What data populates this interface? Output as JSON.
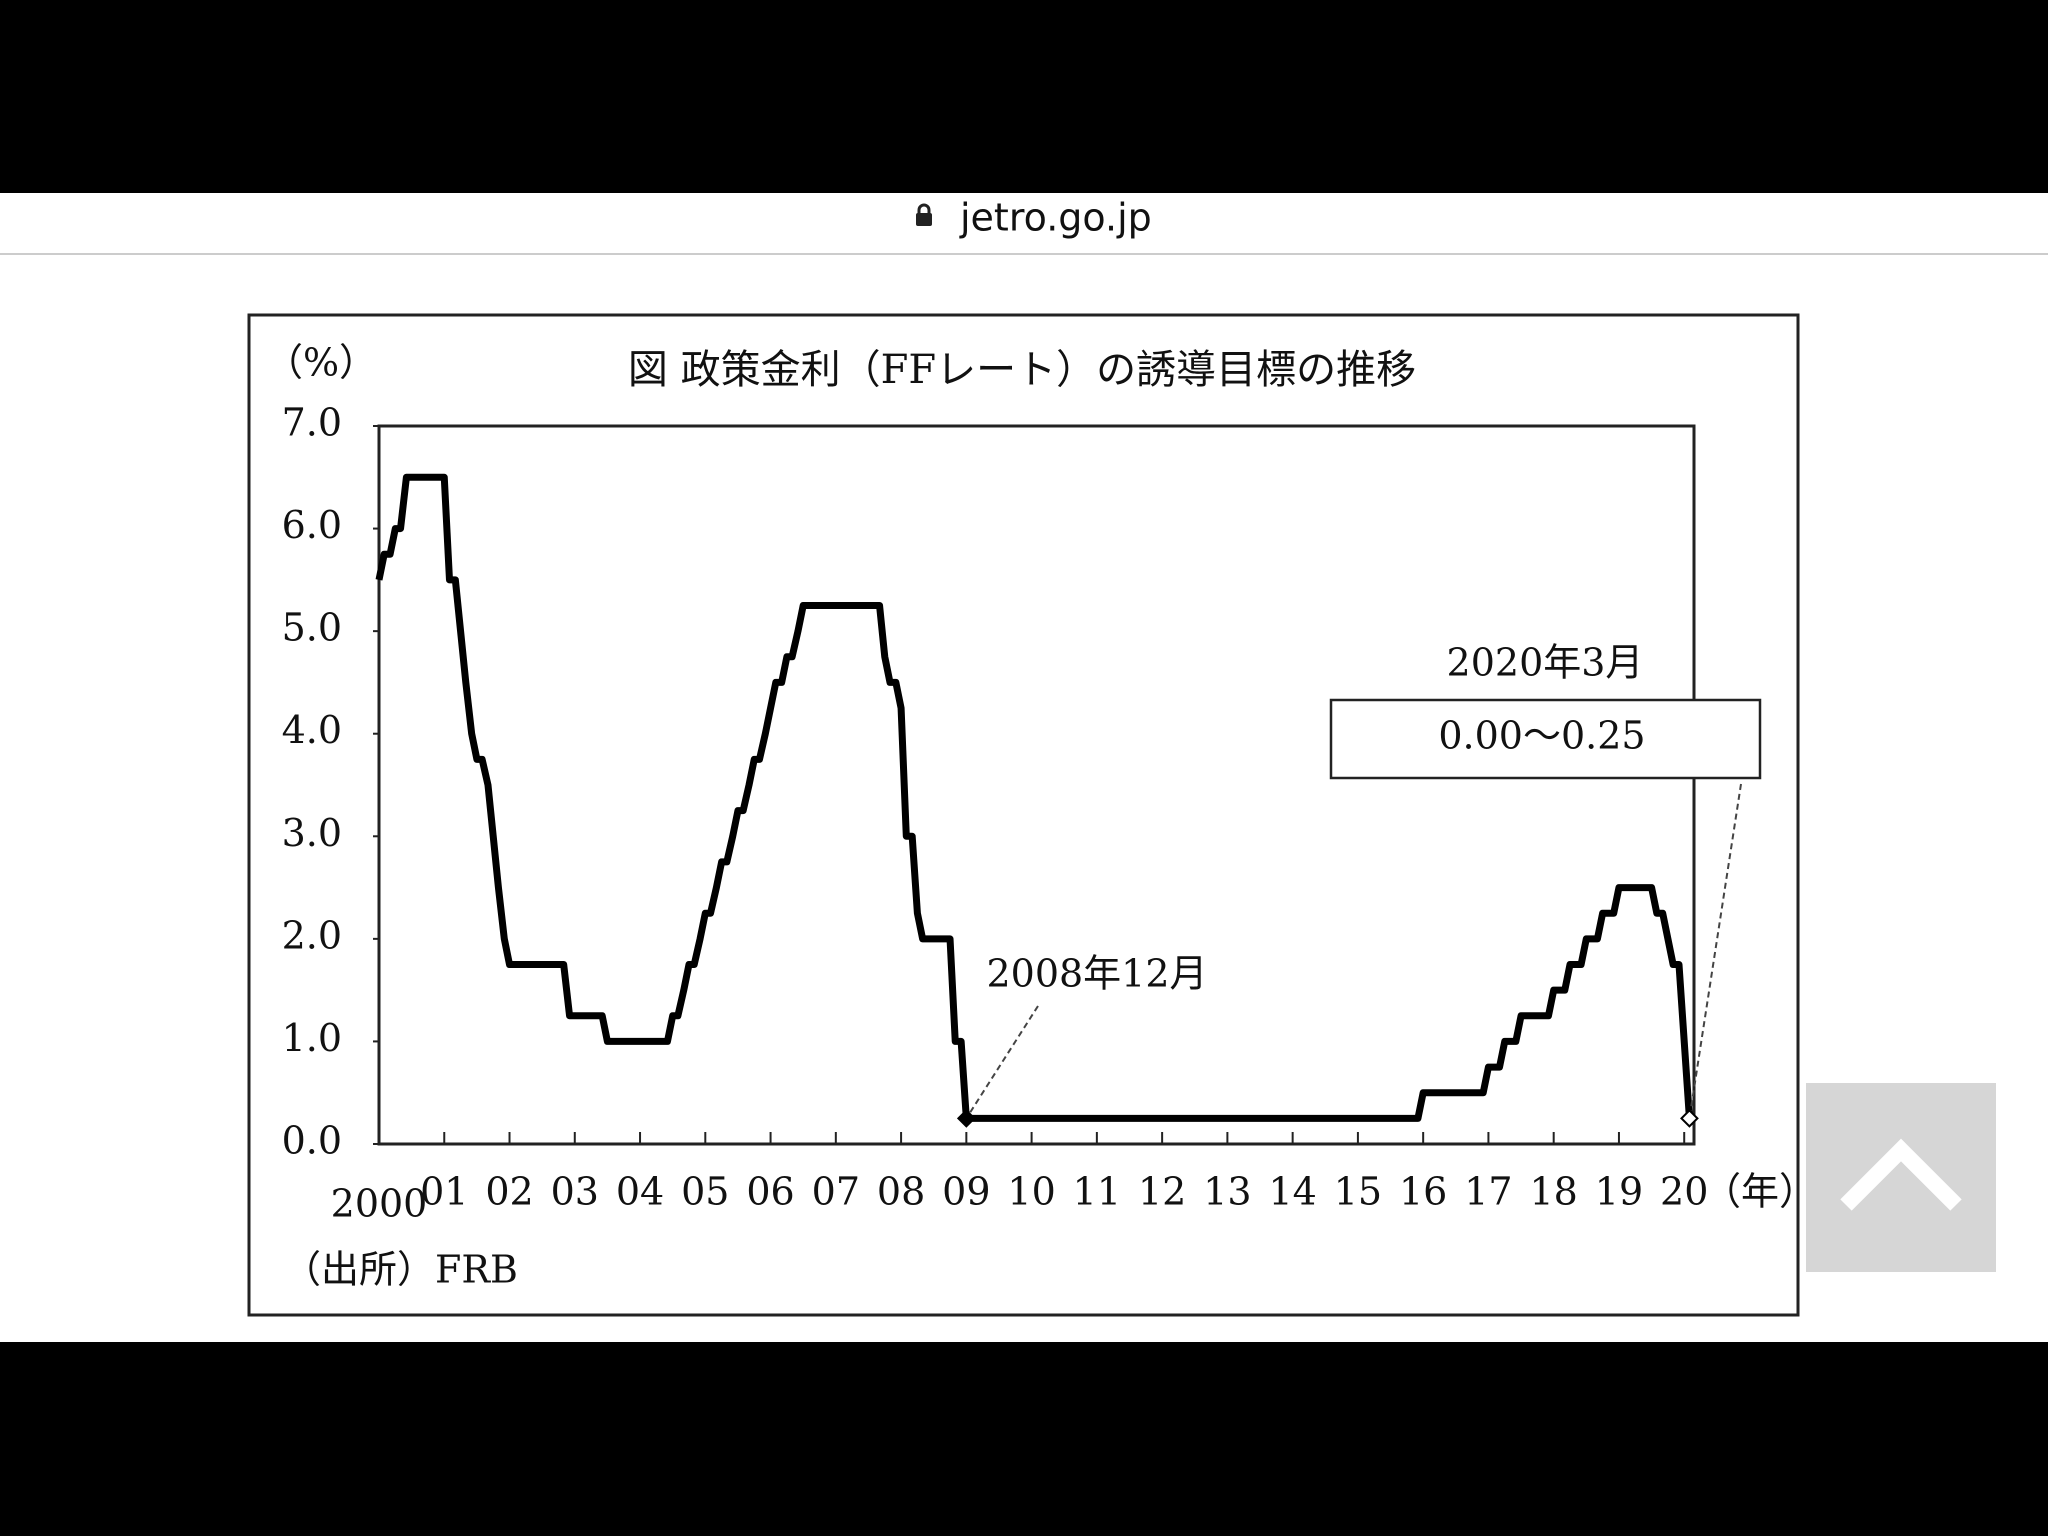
{
  "browser": {
    "url": "jetro.go.jp"
  },
  "chart_data": {
    "type": "line",
    "title": "図 政策金利（FFレート）の誘導目標の推移",
    "y_label": "（%）",
    "x_label": "（年）",
    "source": "（出所）FRB",
    "xlim": [
      2000,
      2020.15
    ],
    "xticks": [
      {
        "value": 2000,
        "label": "2000"
      },
      {
        "value": 2001,
        "label": "01"
      },
      {
        "value": 2002,
        "label": "02"
      },
      {
        "value": 2003,
        "label": "03"
      },
      {
        "value": 2004,
        "label": "04"
      },
      {
        "value": 2005,
        "label": "05"
      },
      {
        "value": 2006,
        "label": "06"
      },
      {
        "value": 2007,
        "label": "07"
      },
      {
        "value": 2008,
        "label": "08"
      },
      {
        "value": 2009,
        "label": "09"
      },
      {
        "value": 2010,
        "label": "10"
      },
      {
        "value": 2011,
        "label": "11"
      },
      {
        "value": 2012,
        "label": "12"
      },
      {
        "value": 2013,
        "label": "13"
      },
      {
        "value": 2014,
        "label": "14"
      },
      {
        "value": 2015,
        "label": "15"
      },
      {
        "value": 2016,
        "label": "16"
      },
      {
        "value": 2017,
        "label": "17"
      },
      {
        "value": 2018,
        "label": "18"
      },
      {
        "value": 2019,
        "label": "19"
      },
      {
        "value": 2020,
        "label": "20"
      }
    ],
    "ylim": [
      0,
      7
    ],
    "yticks": [
      {
        "value": 0,
        "label": "0.0"
      },
      {
        "value": 1,
        "label": "1.0"
      },
      {
        "value": 2,
        "label": "2.0"
      },
      {
        "value": 3,
        "label": "3.0"
      },
      {
        "value": 4,
        "label": "4.0"
      },
      {
        "value": 5,
        "label": "5.0"
      },
      {
        "value": 6,
        "label": "6.0"
      },
      {
        "value": 7,
        "label": "7.0"
      }
    ],
    "x": [
      2000.0,
      2000.08,
      2000.17,
      2000.25,
      2000.33,
      2000.42,
      2001.0,
      2001.08,
      2001.17,
      2001.25,
      2001.33,
      2001.42,
      2001.5,
      2001.58,
      2001.67,
      2001.75,
      2001.83,
      2001.92,
      2002.0,
      2002.83,
      2002.92,
      2003.42,
      2003.5,
      2004.42,
      2004.5,
      2004.58,
      2004.67,
      2004.75,
      2004.83,
      2004.92,
      2005.0,
      2005.08,
      2005.17,
      2005.25,
      2005.33,
      2005.42,
      2005.5,
      2005.58,
      2005.67,
      2005.75,
      2005.83,
      2005.92,
      2006.0,
      2006.08,
      2006.17,
      2006.25,
      2006.33,
      2006.42,
      2006.5,
      2007.67,
      2007.75,
      2007.83,
      2007.92,
      2008.0,
      2008.08,
      2008.17,
      2008.25,
      2008.33,
      2008.75,
      2008.83,
      2008.92,
      2009.0,
      2015.92,
      2016.0,
      2016.92,
      2017.0,
      2017.17,
      2017.25,
      2017.42,
      2017.5,
      2017.92,
      2018.0,
      2018.17,
      2018.25,
      2018.42,
      2018.5,
      2018.67,
      2018.75,
      2018.92,
      2019.0,
      2019.5,
      2019.58,
      2019.67,
      2019.75,
      2019.83,
      2019.92,
      2020.08
    ],
    "series": [
      {
        "color": "#000000",
        "values": [
          5.5,
          5.75,
          5.75,
          6.0,
          6.0,
          6.5,
          6.5,
          5.5,
          5.5,
          5.0,
          4.5,
          4.0,
          3.75,
          3.75,
          3.5,
          3.0,
          2.5,
          2.0,
          1.75,
          1.75,
          1.25,
          1.25,
          1.0,
          1.0,
          1.25,
          1.25,
          1.5,
          1.75,
          1.75,
          2.0,
          2.25,
          2.25,
          2.5,
          2.75,
          2.75,
          3.0,
          3.25,
          3.25,
          3.5,
          3.75,
          3.75,
          4.0,
          4.25,
          4.5,
          4.5,
          4.75,
          4.75,
          5.0,
          5.25,
          5.25,
          4.75,
          4.5,
          4.5,
          4.25,
          3.0,
          3.0,
          2.25,
          2.0,
          2.0,
          1.0,
          1.0,
          0.25,
          0.25,
          0.5,
          0.5,
          0.75,
          0.75,
          1.0,
          1.0,
          1.25,
          1.25,
          1.5,
          1.5,
          1.75,
          1.75,
          2.0,
          2.0,
          2.25,
          2.25,
          2.5,
          2.5,
          2.25,
          2.25,
          2.0,
          1.75,
          1.75,
          0.25
        ]
      }
    ],
    "annotations": [
      {
        "text": "2008年12月"
      },
      {
        "text": "2020年3月",
        "box": "0.00～0.25"
      }
    ]
  }
}
